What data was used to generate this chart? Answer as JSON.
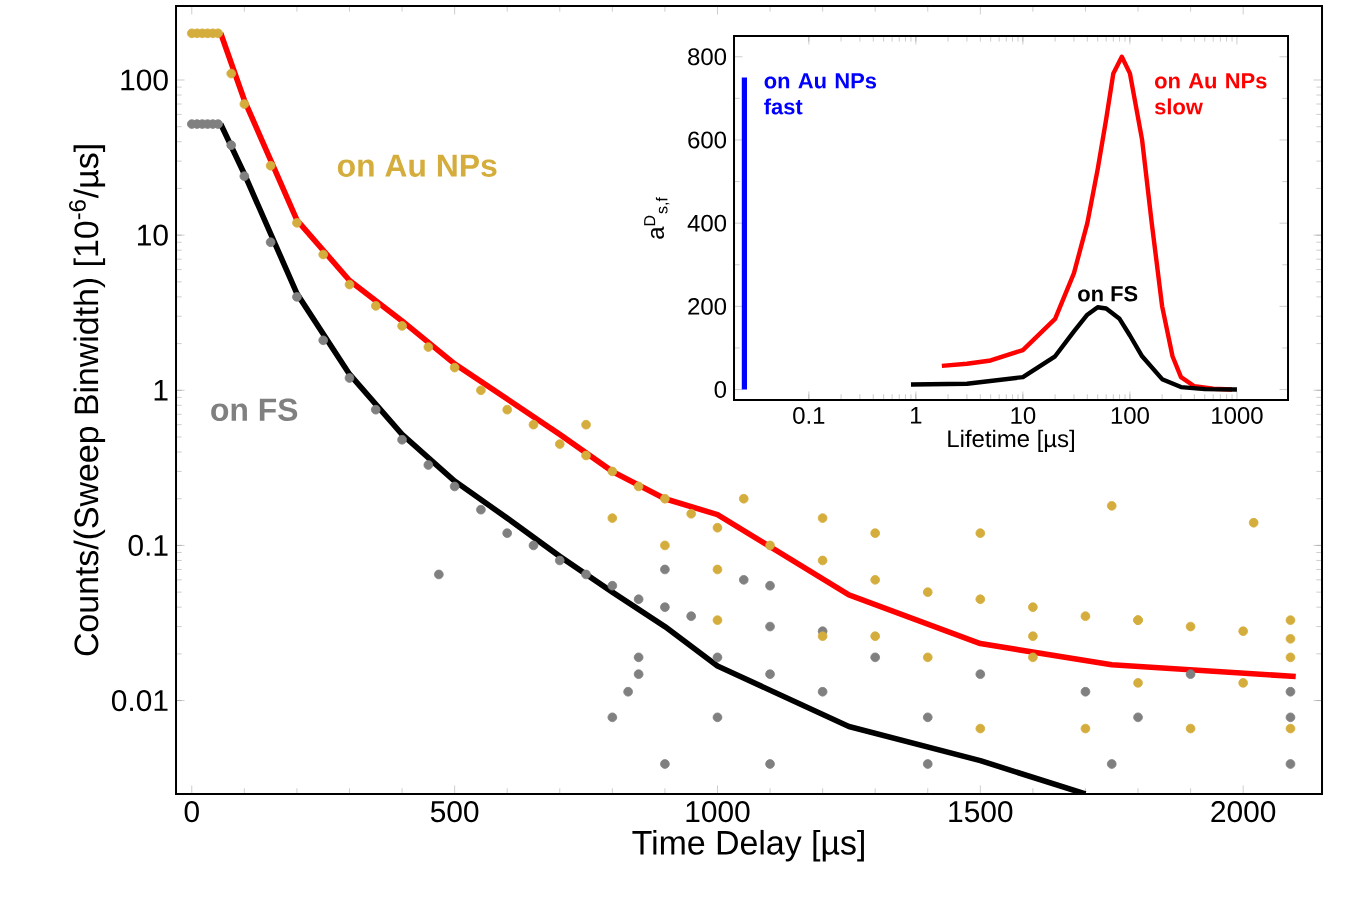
{
  "chart_data": [
    {
      "type": "scatter",
      "xlabel": "Time Delay [µs]",
      "ylabel": "Counts/(Sweep Binwidth) [10$^{-6}$/µs]",
      "xlim": [
        -30,
        2150
      ],
      "ylim": [
        0.0025,
        300
      ],
      "xticks": [
        0,
        500,
        1000,
        1500,
        2000
      ],
      "yticks": [
        0.01,
        0.1,
        1,
        10,
        100
      ],
      "log": "y",
      "series": [
        {
          "name": "on FS",
          "type": "scatter",
          "marker": "circle",
          "color": "#808080",
          "x": [
            0,
            10,
            20,
            30,
            40,
            50,
            75,
            100,
            150,
            200,
            250,
            300,
            350,
            400,
            450,
            500,
            550,
            600,
            650,
            700,
            750,
            800,
            850,
            900,
            950,
            1100,
            1200,
            470,
            900,
            1050,
            1100,
            850,
            1000,
            1300,
            850,
            1100,
            1500,
            1900,
            830,
            1200,
            1700,
            2090,
            800,
            1000,
            1400,
            1800,
            2090,
            900,
            1100,
            1400,
            1750,
            2090
          ],
          "values": [
            52,
            52,
            52,
            52,
            52,
            52,
            38,
            24,
            9,
            4,
            2.1,
            1.2,
            0.75,
            0.48,
            0.33,
            0.24,
            0.17,
            0.12,
            0.1,
            0.08,
            0.065,
            0.055,
            0.045,
            0.04,
            0.035,
            0.03,
            0.028,
            0.065,
            0.07,
            0.06,
            0.055,
            0.019,
            0.019,
            0.019,
            0.0148,
            0.0148,
            0.0148,
            0.0148,
            0.0114,
            0.0114,
            0.0114,
            0.0114,
            0.0078,
            0.0078,
            0.0078,
            0.0078,
            0.0078,
            0.0039,
            0.0039,
            0.0039,
            0.0039,
            0.0039
          ]
        },
        {
          "name": "on Au NPs",
          "type": "scatter",
          "marker": "circle",
          "color": "#d4ad3c",
          "x": [
            0,
            10,
            20,
            30,
            40,
            50,
            75,
            100,
            150,
            200,
            250,
            300,
            350,
            400,
            450,
            500,
            550,
            600,
            650,
            700,
            750,
            800,
            850,
            900,
            950,
            1000,
            1100,
            1200,
            1300,
            1400,
            1500,
            1600,
            1700,
            1800,
            1900,
            2000,
            2090,
            750,
            1050,
            1500,
            1750,
            2020,
            1300,
            1200,
            800,
            900,
            1000,
            1000,
            1200,
            1400,
            1600,
            1800,
            2000,
            1500,
            1700,
            1900,
            2090,
            1300,
            1600,
            1800,
            2090,
            2090
          ],
          "values": [
            200,
            200,
            200,
            200,
            200,
            200,
            110,
            70,
            28,
            12,
            7.5,
            4.8,
            3.5,
            2.6,
            1.9,
            1.4,
            1.0,
            0.75,
            0.6,
            0.45,
            0.38,
            0.3,
            0.24,
            0.2,
            0.16,
            0.13,
            0.1,
            0.08,
            0.06,
            0.05,
            0.045,
            0.04,
            0.035,
            0.033,
            0.03,
            0.028,
            0.025,
            0.6,
            0.2,
            0.12,
            0.18,
            0.14,
            0.12,
            0.15,
            0.15,
            0.1,
            0.07,
            0.033,
            0.026,
            0.019,
            0.019,
            0.013,
            0.013,
            0.0066,
            0.0066,
            0.0066,
            0.0066,
            0.026,
            0.026,
            0.033,
            0.033,
            0.019
          ]
        },
        {
          "type": "line",
          "marker": "none",
          "color": "#ff0000",
          "x": [
            55,
            100,
            200,
            300,
            400,
            500,
            700,
            800,
            900,
            1000,
            1250,
            1500,
            1750,
            2100
          ],
          "values": [
            200,
            74,
            12.5,
            5.1,
            2.8,
            1.48,
            0.52,
            0.3,
            0.2,
            0.158,
            0.048,
            0.0233,
            0.017,
            0.0143
          ]
        },
        {
          "type": "line",
          "marker": "none",
          "color": "#000000",
          "x": [
            55,
            100,
            200,
            300,
            400,
            500,
            600,
            700,
            800,
            900,
            1000,
            1250,
            1500,
            1700
          ],
          "values": [
            52,
            24.8,
            4.2,
            1.27,
            0.52,
            0.26,
            0.15,
            0.085,
            0.05,
            0.03,
            0.0167,
            0.0068,
            0.0041,
            0.0025
          ]
        }
      ]
    },
    {
      "type": "line",
      "xlabel": "Lifetime [µs]",
      "ylabel": "a$^{D}$$_{s,f}$",
      "xlim": [
        0.02,
        3000
      ],
      "ylim": [
        -25,
        850
      ],
      "xticks": [
        0.1,
        1,
        10,
        100,
        1000
      ],
      "yticks": [
        0,
        200,
        400,
        600,
        800
      ],
      "log": "x",
      "series": [
        {
          "name": "on Au NPs fast",
          "color": "#0000ff",
          "type": "bar",
          "x": [
            0.025
          ],
          "values": [
            750
          ]
        },
        {
          "name": "on Au NPs slow",
          "color": "#ff0000",
          "x": [
            1.75,
            3,
            5,
            10,
            20,
            30,
            40,
            50,
            60,
            70,
            84,
            100,
            130,
            160,
            200,
            250,
            300,
            400,
            600,
            900
          ],
          "values": [
            57,
            62,
            70,
            95,
            170,
            280,
            400,
            530,
            650,
            760,
            800,
            760,
            600,
            400,
            200,
            80,
            30,
            8,
            2,
            0
          ]
        },
        {
          "name": "on FS",
          "color": "#000000",
          "x": [
            0.9,
            3,
            10,
            20,
            30,
            40,
            50,
            60,
            80,
            100,
            130,
            200,
            300,
            500,
            1000
          ],
          "values": [
            12,
            14,
            30,
            80,
            140,
            180,
            198,
            195,
            170,
            130,
            80,
            25,
            6,
            1,
            0
          ]
        }
      ]
    }
  ]
}
